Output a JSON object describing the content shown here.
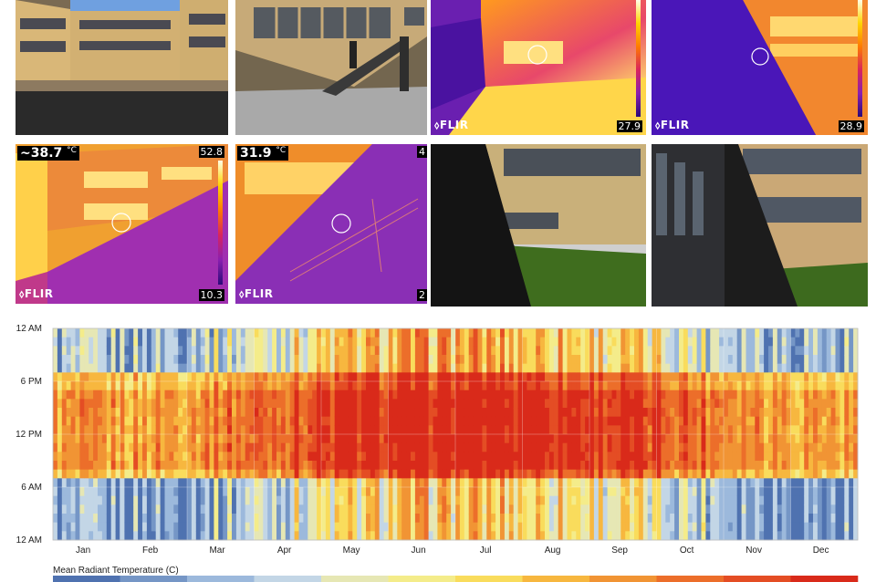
{
  "photos": {
    "p1": {
      "logo": "",
      "low": "",
      "high": "",
      "spot": ""
    },
    "p5": {
      "logo": "FLIR",
      "low": "10.3",
      "high": "52.8",
      "spot": "~38.7",
      "unit": "°C"
    },
    "p3": {
      "logo": "FLIR",
      "low": "27.9",
      "high": "",
      "spot": ""
    },
    "p4": {
      "logo": "FLIR",
      "low": "28.9",
      "high": "",
      "spot": ""
    },
    "p6": {
      "logo": "FLIR",
      "low": "2",
      "high": "4",
      "spot": "31.9",
      "unit": "°C"
    }
  },
  "chart_data": {
    "type": "heatmap",
    "title": "",
    "xlabel": "",
    "ylabel": "",
    "x_tick_labels": [
      "Jan",
      "Feb",
      "Mar",
      "Apr",
      "May",
      "Jun",
      "Jul",
      "Aug",
      "Sep",
      "Oct",
      "Nov",
      "Dec"
    ],
    "y_tick_labels": [
      "12 AM",
      "6 PM",
      "12 PM",
      "6 AM",
      "12 AM"
    ],
    "x_range_days": [
      1,
      365
    ],
    "y_range_hours": [
      0,
      24
    ],
    "grid": true,
    "colormap": [
      "#4f72b0",
      "#7596c6",
      "#9cb9dc",
      "#c3d6e6",
      "#e6e7b4",
      "#f4ec8a",
      "#f9dc5c",
      "#f7b73f",
      "#f19434",
      "#ec6e2a",
      "#e44d24",
      "#d92a1a"
    ],
    "legend_title": "Mean Radiant Temperature (C)",
    "legend_placement": "bottom"
  }
}
